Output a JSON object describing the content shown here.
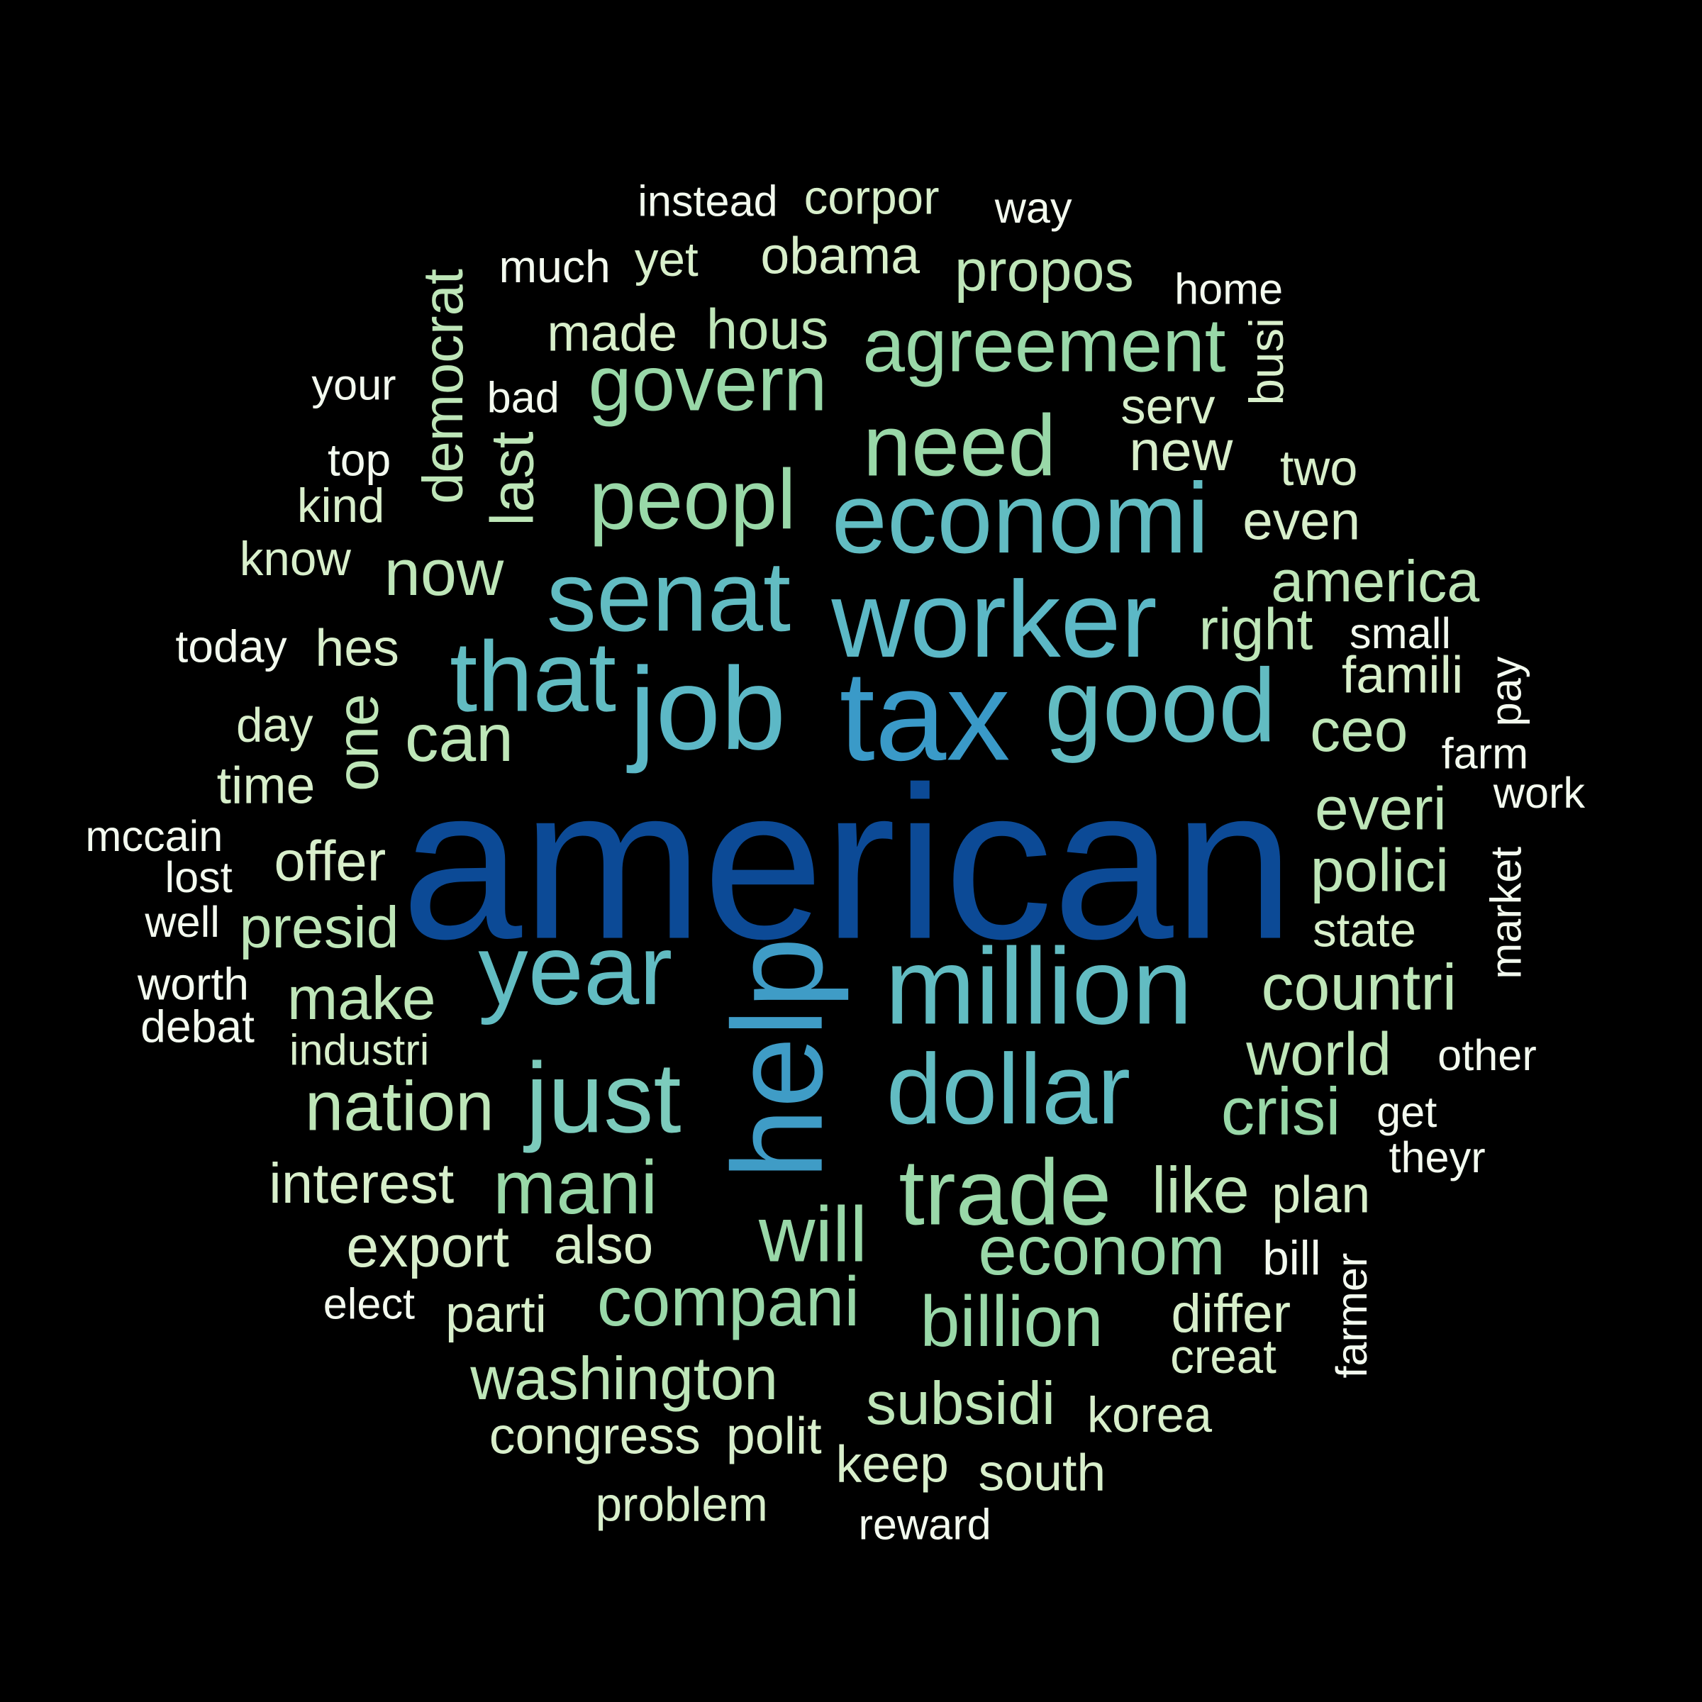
{
  "word_cloud": {
    "background": "#000000",
    "words": [
      {
        "text": "american",
        "color": "#0c4a96"
      },
      {
        "text": "tax",
        "color": "#3a9ac8"
      },
      {
        "text": "help",
        "color": "#3f9cc6"
      },
      {
        "text": "job",
        "color": "#5cb8c6"
      },
      {
        "text": "worker",
        "color": "#5cb8c6"
      },
      {
        "text": "million",
        "color": "#62bcc2"
      },
      {
        "text": "senat",
        "color": "#62bcc2"
      },
      {
        "text": "good",
        "color": "#62bcc2"
      },
      {
        "text": "that",
        "color": "#62bcc2"
      },
      {
        "text": "year",
        "color": "#62bcc2"
      },
      {
        "text": "economi",
        "color": "#62bcc2"
      },
      {
        "text": "dollar",
        "color": "#62bcc2"
      },
      {
        "text": "just",
        "color": "#7ccbbc"
      },
      {
        "text": "trade",
        "color": "#99d8a8"
      },
      {
        "text": "need",
        "color": "#99d8a8"
      },
      {
        "text": "peopl",
        "color": "#99d8a8"
      },
      {
        "text": "govern",
        "color": "#99d8a8"
      },
      {
        "text": "agreement",
        "color": "#99d8a8"
      },
      {
        "text": "will",
        "color": "#99d8a8"
      },
      {
        "text": "mani",
        "color": "#99d8a8"
      },
      {
        "text": "econom",
        "color": "#99d8a8"
      },
      {
        "text": "billion",
        "color": "#99d8a8"
      },
      {
        "text": "compani",
        "color": "#99d8a8"
      },
      {
        "text": "crisi",
        "color": "#99d8a8"
      },
      {
        "text": "nation",
        "color": "#bee6b8"
      },
      {
        "text": "world",
        "color": "#bee6b8"
      },
      {
        "text": "countri",
        "color": "#bee6b8"
      },
      {
        "text": "washington",
        "color": "#bee6b8"
      },
      {
        "text": "subsidi",
        "color": "#bee6b8"
      },
      {
        "text": "like",
        "color": "#bee6b8"
      },
      {
        "text": "now",
        "color": "#bee6b8"
      },
      {
        "text": "make",
        "color": "#bee6b8"
      },
      {
        "text": "can",
        "color": "#bee6b8"
      },
      {
        "text": "one",
        "color": "#bee6b8"
      },
      {
        "text": "last",
        "color": "#bee6b8"
      },
      {
        "text": "democrat",
        "color": "#bee6b8"
      },
      {
        "text": "america",
        "color": "#bee6b8"
      },
      {
        "text": "everi",
        "color": "#bee6b8"
      },
      {
        "text": "polici",
        "color": "#bee6b8"
      },
      {
        "text": "ceo",
        "color": "#bee6b8"
      },
      {
        "text": "right",
        "color": "#bee6b8"
      },
      {
        "text": "presid",
        "color": "#bee6b8"
      },
      {
        "text": "hous",
        "color": "#bee6b8"
      },
      {
        "text": "propos",
        "color": "#bee6b8"
      },
      {
        "text": "export",
        "color": "#d8efcb"
      },
      {
        "text": "interest",
        "color": "#d8efcb"
      },
      {
        "text": "offer",
        "color": "#d8efcb"
      },
      {
        "text": "new",
        "color": "#d8efcb"
      },
      {
        "text": "even",
        "color": "#d8efcb"
      },
      {
        "text": "made",
        "color": "#d8efcb"
      },
      {
        "text": "differ",
        "color": "#d8efcb"
      },
      {
        "text": "also",
        "color": "#d8efcb"
      },
      {
        "text": "congress",
        "color": "#d8efcb"
      },
      {
        "text": "polit",
        "color": "#d8efcb"
      },
      {
        "text": "keep",
        "color": "#d8efcb"
      },
      {
        "text": "south",
        "color": "#d8efcb"
      },
      {
        "text": "korea",
        "color": "#d8efcb"
      },
      {
        "text": "famili",
        "color": "#d8efcb"
      },
      {
        "text": "obama",
        "color": "#d8efcb"
      },
      {
        "text": "hes",
        "color": "#d8efcb"
      },
      {
        "text": "time",
        "color": "#d8efcb"
      },
      {
        "text": "parti",
        "color": "#d8efcb"
      },
      {
        "text": "state",
        "color": "#d8efcb"
      },
      {
        "text": "industri",
        "color": "#d8efcb"
      },
      {
        "text": "plan",
        "color": "#d8efcb"
      },
      {
        "text": "problem",
        "color": "#d8efcb"
      },
      {
        "text": "creat",
        "color": "#d8efcb"
      },
      {
        "text": "serv",
        "color": "#d8efcb"
      },
      {
        "text": "two",
        "color": "#d8efcb"
      },
      {
        "text": "busi",
        "color": "#d8efcb"
      },
      {
        "text": "corpor",
        "color": "#d8efcb"
      },
      {
        "text": "yet",
        "color": "#d8efcb"
      },
      {
        "text": "day",
        "color": "#d8efcb"
      },
      {
        "text": "kind",
        "color": "#d8efcb"
      },
      {
        "text": "know",
        "color": "#d8efcb"
      },
      {
        "text": "instead",
        "color": "#f3faef"
      },
      {
        "text": "way",
        "color": "#f3faef"
      },
      {
        "text": "much",
        "color": "#f3faef"
      },
      {
        "text": "home",
        "color": "#f3faef"
      },
      {
        "text": "your",
        "color": "#f3faef"
      },
      {
        "text": "bad",
        "color": "#f3faef"
      },
      {
        "text": "top",
        "color": "#f3faef"
      },
      {
        "text": "today",
        "color": "#f3faef"
      },
      {
        "text": "small",
        "color": "#f3faef"
      },
      {
        "text": "pay",
        "color": "#f3faef"
      },
      {
        "text": "farm",
        "color": "#f3faef"
      },
      {
        "text": "work",
        "color": "#f3faef"
      },
      {
        "text": "mccain",
        "color": "#f3faef"
      },
      {
        "text": "lost",
        "color": "#f3faef"
      },
      {
        "text": "well",
        "color": "#f3faef"
      },
      {
        "text": "market",
        "color": "#f3faef"
      },
      {
        "text": "worth",
        "color": "#f3faef"
      },
      {
        "text": "debat",
        "color": "#f3faef"
      },
      {
        "text": "other",
        "color": "#f3faef"
      },
      {
        "text": "get",
        "color": "#f3faef"
      },
      {
        "text": "theyr",
        "color": "#f3faef"
      },
      {
        "text": "bill",
        "color": "#f3faef"
      },
      {
        "text": "elect",
        "color": "#f3faef"
      },
      {
        "text": "farmer",
        "color": "#f3faef"
      },
      {
        "text": "reward",
        "color": "#f3faef"
      }
    ]
  }
}
